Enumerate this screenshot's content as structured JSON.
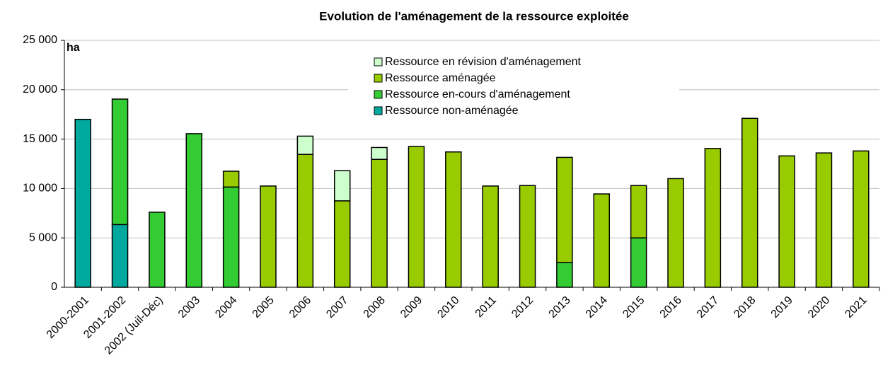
{
  "chart_data": {
    "type": "stacked_bar",
    "title": "Evolution de l'aménagement de la ressource exploitée",
    "y_label": "ha",
    "categories": [
      "2000-2001",
      "2001-2002",
      "2002 (Juil-Déc)",
      "2003",
      "2004",
      "2005",
      "2006",
      "2007",
      "2008",
      "2009",
      "2010",
      "2011",
      "2012",
      "2013",
      "2014",
      "2015",
      "2016",
      "2017",
      "2018",
      "2019",
      "2020",
      "2021"
    ],
    "series": [
      {
        "name": "Ressource non-aménagée",
        "color": "#00a99d",
        "values": [
          17000,
          6350,
          null,
          null,
          null,
          null,
          null,
          null,
          null,
          null,
          null,
          null,
          null,
          null,
          null,
          null,
          null,
          null,
          null,
          null,
          null,
          null
        ]
      },
      {
        "name": "Ressource en-cours d'aménagement",
        "color": "#33cc33",
        "values": [
          null,
          12700,
          7600,
          15550,
          10150,
          null,
          null,
          null,
          null,
          null,
          null,
          null,
          null,
          2500,
          null,
          5000,
          null,
          null,
          null,
          null,
          null,
          null
        ]
      },
      {
        "name": "Ressource aménagée",
        "color": "#99cc00",
        "values": [
          null,
          null,
          null,
          null,
          1600,
          10250,
          13450,
          8750,
          12950,
          14250,
          13700,
          10250,
          10300,
          10650,
          9450,
          5300,
          11000,
          14050,
          17100,
          13300,
          13600,
          13800
        ]
      },
      {
        "name": "Ressource en révision d'aménagement",
        "color": "#ccffcc",
        "values": [
          null,
          null,
          null,
          null,
          null,
          null,
          1850,
          3050,
          1200,
          null,
          null,
          null,
          null,
          null,
          null,
          null,
          null,
          null,
          null,
          null,
          null,
          null
        ]
      }
    ],
    "ylim": [
      0,
      25000
    ],
    "yticks": [
      0,
      {
        "value": 5000,
        "label": "5 000"
      },
      {
        "value": 10000,
        "label": "10 000"
      },
      {
        "value": 15000,
        "label": "15 000"
      },
      {
        "value": 20000,
        "label": "20 000"
      },
      {
        "value": 25000,
        "label": "25 000"
      }
    ],
    "grid": true,
    "legend": "top"
  }
}
